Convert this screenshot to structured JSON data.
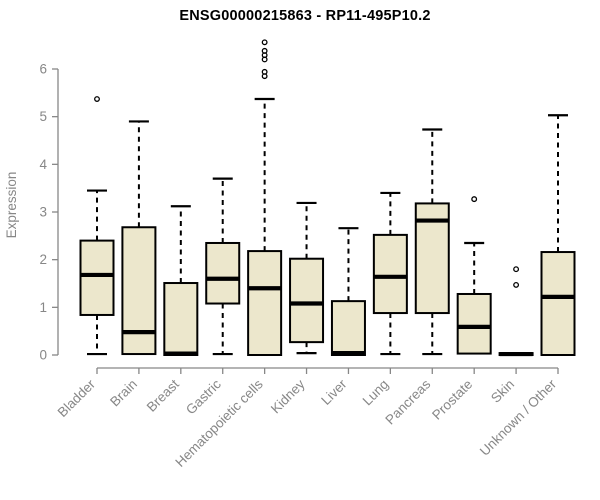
{
  "chart_data": {
    "type": "boxplot",
    "title": "ENSG00000215863 - RP11-495P10.2",
    "ylabel": "Expression",
    "xlabel": "",
    "ylim": [
      0,
      6
    ],
    "yticks": [
      0,
      1,
      2,
      3,
      4,
      5,
      6
    ],
    "grid": false,
    "legend": "none",
    "categories": [
      "Bladder",
      "Brain",
      "Breast",
      "Gastric",
      "Hematopoietic cells",
      "Kidney",
      "Liver",
      "Lung",
      "Pancreas",
      "Prostate",
      "Skin",
      "Unknown / Other"
    ],
    "boxes": [
      {
        "category": "Bladder",
        "whisker_low": 0.02,
        "q1": 0.84,
        "median": 1.68,
        "q3": 2.4,
        "whisker_high": 3.45,
        "outliers": [
          5.37
        ]
      },
      {
        "category": "Brain",
        "whisker_low": 0.02,
        "q1": 0.02,
        "median": 0.48,
        "q3": 2.68,
        "whisker_high": 4.9,
        "outliers": []
      },
      {
        "category": "Breast",
        "whisker_low": 0.0,
        "q1": 0.0,
        "median": 0.03,
        "q3": 1.51,
        "whisker_high": 3.12,
        "outliers": []
      },
      {
        "category": "Gastric",
        "whisker_low": 0.02,
        "q1": 1.08,
        "median": 1.6,
        "q3": 2.35,
        "whisker_high": 3.7,
        "outliers": []
      },
      {
        "category": "Hematopoietic cells",
        "whisker_low": 0.0,
        "q1": 0.0,
        "median": 1.4,
        "q3": 2.18,
        "whisker_high": 5.37,
        "outliers": [
          6.56,
          6.38,
          6.29,
          6.2,
          5.94,
          5.85
        ]
      },
      {
        "category": "Kidney",
        "whisker_low": 0.04,
        "q1": 0.27,
        "median": 1.08,
        "q3": 2.02,
        "whisker_high": 3.19,
        "outliers": []
      },
      {
        "category": "Liver",
        "whisker_low": 0.0,
        "q1": 0.0,
        "median": 0.04,
        "q3": 1.13,
        "whisker_high": 2.66,
        "outliers": []
      },
      {
        "category": "Lung",
        "whisker_low": 0.02,
        "q1": 0.88,
        "median": 1.64,
        "q3": 2.52,
        "whisker_high": 3.4,
        "outliers": []
      },
      {
        "category": "Pancreas",
        "whisker_low": 0.02,
        "q1": 0.88,
        "median": 2.82,
        "q3": 3.18,
        "whisker_high": 4.73,
        "outliers": []
      },
      {
        "category": "Prostate",
        "whisker_low": 0.03,
        "q1": 0.03,
        "median": 0.59,
        "q3": 1.28,
        "whisker_high": 2.35,
        "outliers": [
          3.27
        ]
      },
      {
        "category": "Skin",
        "whisker_low": 0.0,
        "q1": 0.0,
        "median": 0.02,
        "q3": 0.04,
        "whisker_high": 0.04,
        "outliers": [
          1.8,
          1.47
        ]
      },
      {
        "category": "Unknown / Other",
        "whisker_low": 0.0,
        "q1": 0.0,
        "median": 1.22,
        "q3": 2.16,
        "whisker_high": 5.03,
        "outliers": []
      }
    ],
    "colors": {
      "box_fill": "#ECE7CC",
      "box_stroke": "#000000",
      "median": "#000000",
      "whisker": "#000000",
      "axis": "#878787",
      "tick_text": "#878787",
      "title": "#000000",
      "background": "#FFFFFF"
    }
  }
}
